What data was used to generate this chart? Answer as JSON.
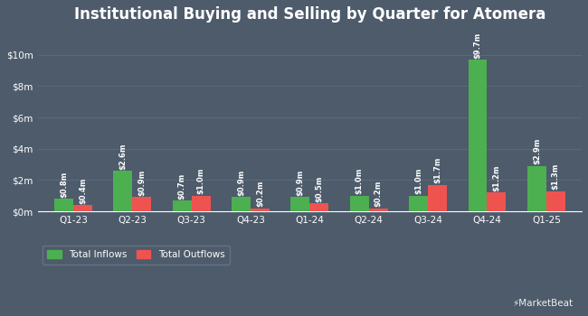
{
  "title": "Institutional Buying and Selling by Quarter for Atomera",
  "quarters": [
    "Q1-23",
    "Q2-23",
    "Q3-23",
    "Q4-23",
    "Q1-24",
    "Q2-24",
    "Q3-24",
    "Q4-24",
    "Q1-25"
  ],
  "inflows": [
    0.8,
    2.6,
    0.7,
    0.9,
    0.9,
    1.0,
    1.0,
    9.7,
    2.9
  ],
  "outflows": [
    0.4,
    0.9,
    1.0,
    0.2,
    0.5,
    0.2,
    1.7,
    1.2,
    1.3
  ],
  "inflow_labels": [
    "$0.8m",
    "$2.6m",
    "$0.7m",
    "$0.9m",
    "$0.9m",
    "$1.0m",
    "$1.0m",
    "$9.7m",
    "$2.9m"
  ],
  "outflow_labels": [
    "$0.4m",
    "$0.9m",
    "$1.0m",
    "$0.2m",
    "$0.5m",
    "$0.2m",
    "$1.7m",
    "$1.2m",
    "$1.3m"
  ],
  "inflow_color": "#4CAF50",
  "outflow_color": "#ef5350",
  "background_color": "#4d5b6b",
  "plot_bg_color": "#4d5b6b",
  "text_color": "#ffffff",
  "grid_color": "#5a6a7a",
  "yticks": [
    0,
    2,
    4,
    6,
    8,
    10
  ],
  "ytick_labels": [
    "$0m",
    "$2m",
    "$4m",
    "$6m",
    "$8m",
    "$10m"
  ],
  "ylim": [
    0,
    11.5
  ],
  "bar_width": 0.32,
  "legend_inflow": "Total Inflows",
  "legend_outflow": "Total Outflows",
  "title_fontsize": 12,
  "label_fontsize": 6.0,
  "tick_fontsize": 7.5,
  "legend_fontsize": 7.5
}
